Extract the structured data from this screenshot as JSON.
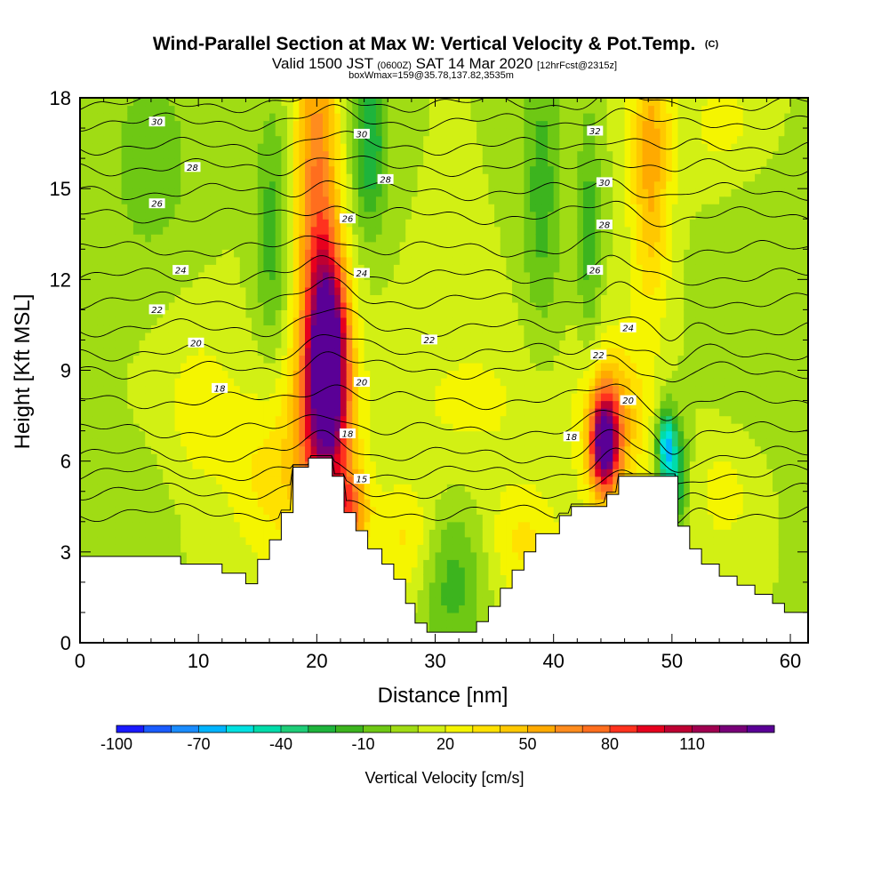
{
  "chart_data": {
    "type": "heatmap",
    "title": "Wind-Parallel Section at Max W: Vertical Velocity & Pot.Temp.",
    "title_suffix": "(C)",
    "subtitle_parts": [
      "Valid 1500 JST ",
      "(0600Z)",
      " SAT 14 Mar 2020 ",
      "[12hrFcst@2315z]"
    ],
    "subtitle_line2": "boxWmax=159@35.78,137.82,3535m",
    "xlabel": "Distance [nm]",
    "ylabel": "Height [Kft MSL]",
    "xlim": [
      0,
      61.5
    ],
    "ylim": [
      0,
      18
    ],
    "x_ticks": [
      0,
      10,
      20,
      30,
      40,
      50,
      60
    ],
    "y_ticks": [
      0,
      3,
      6,
      9,
      12,
      15,
      18
    ],
    "colorbar": {
      "title": "Vertical Velocity [cm/s]",
      "tick_labels": [
        "-100",
        "-70",
        "-40",
        "-10",
        "20",
        "50",
        "80",
        "110"
      ],
      "tick_values": [
        -100,
        -70,
        -40,
        -10,
        20,
        50,
        80,
        110
      ],
      "bins": [
        -100,
        -90,
        -80,
        -70,
        -60,
        -50,
        -40,
        -30,
        -20,
        -10,
        0,
        10,
        20,
        30,
        40,
        50,
        60,
        70,
        80,
        90,
        100,
        110,
        120,
        130
      ],
      "colors": [
        "#1a1aff",
        "#1a5cff",
        "#1a8cff",
        "#00b4ff",
        "#00e1e1",
        "#00dcaa",
        "#1ecd78",
        "#1eb43c",
        "#3cb41e",
        "#6ec814",
        "#a0dc14",
        "#d2f014",
        "#f5f500",
        "#ffe100",
        "#ffc800",
        "#ffaa00",
        "#ff8c1e",
        "#ff6e1e",
        "#ff321e",
        "#e6001e",
        "#be0032",
        "#a00050",
        "#780078",
        "#5a0096"
      ]
    },
    "background_w_cms": 10,
    "terrain_kft": [
      [
        0,
        2.85
      ],
      [
        8.5,
        2.85
      ],
      [
        8.5,
        2.6
      ],
      [
        12,
        2.6
      ],
      [
        12,
        2.3
      ],
      [
        14,
        2.3
      ],
      [
        14,
        1.95
      ],
      [
        15,
        1.95
      ],
      [
        15,
        2.75
      ],
      [
        16,
        2.75
      ],
      [
        16,
        3.4
      ],
      [
        17,
        3.4
      ],
      [
        17,
        4.3
      ],
      [
        18,
        4.3
      ],
      [
        18,
        5.8
      ],
      [
        19.3,
        5.8
      ],
      [
        19.3,
        6.1
      ],
      [
        21.3,
        6.1
      ],
      [
        21.3,
        5.5
      ],
      [
        22.3,
        5.5
      ],
      [
        22.3,
        4.3
      ],
      [
        23.3,
        4.3
      ],
      [
        23.3,
        3.7
      ],
      [
        24.3,
        3.7
      ],
      [
        24.3,
        3.1
      ],
      [
        25.5,
        3.1
      ],
      [
        25.5,
        2.6
      ],
      [
        26.5,
        2.6
      ],
      [
        26.5,
        2.1
      ],
      [
        27.5,
        2.1
      ],
      [
        27.5,
        1.3
      ],
      [
        28.3,
        1.3
      ],
      [
        28.3,
        0.65
      ],
      [
        29.3,
        0.65
      ],
      [
        29.3,
        0.35
      ],
      [
        33.5,
        0.35
      ],
      [
        33.5,
        0.7
      ],
      [
        34.5,
        0.7
      ],
      [
        34.5,
        1.2
      ],
      [
        35.5,
        1.2
      ],
      [
        35.5,
        1.8
      ],
      [
        36.5,
        1.8
      ],
      [
        36.5,
        2.4
      ],
      [
        37.5,
        2.4
      ],
      [
        37.5,
        3.0
      ],
      [
        38.5,
        3.0
      ],
      [
        38.5,
        3.6
      ],
      [
        40.5,
        3.6
      ],
      [
        40.5,
        4.2
      ],
      [
        41.5,
        4.2
      ],
      [
        41.5,
        4.5
      ],
      [
        44.5,
        4.5
      ],
      [
        44.5,
        4.9
      ],
      [
        45.5,
        4.9
      ],
      [
        45.5,
        5.5
      ],
      [
        50.5,
        5.5
      ],
      [
        50.5,
        3.85
      ],
      [
        51.5,
        3.85
      ],
      [
        51.5,
        3.1
      ],
      [
        52.5,
        3.1
      ],
      [
        52.5,
        2.6
      ],
      [
        54,
        2.6
      ],
      [
        54,
        2.2
      ],
      [
        55.5,
        2.2
      ],
      [
        55.5,
        1.9
      ],
      [
        57,
        1.9
      ],
      [
        57,
        1.6
      ],
      [
        58.5,
        1.6
      ],
      [
        58.5,
        1.3
      ],
      [
        59.5,
        1.3
      ],
      [
        59.5,
        1.0
      ],
      [
        61.5,
        1.0
      ]
    ],
    "w_features": [
      {
        "x": 21.0,
        "y": 9.5,
        "sx": 1.1,
        "sy": 2.3,
        "w": 125
      },
      {
        "x": 20.5,
        "y": 7.0,
        "sx": 1.9,
        "sy": 2.6,
        "w": 60
      },
      {
        "x": 20.0,
        "y": 15.0,
        "sx": 1.3,
        "sy": 4.5,
        "w": 60
      },
      {
        "x": 22.8,
        "y": 4.4,
        "sx": 1.1,
        "sy": 0.9,
        "w": 55
      },
      {
        "x": 16.0,
        "y": 5.5,
        "sx": 2.2,
        "sy": 2.2,
        "w": 22
      },
      {
        "x": 44.3,
        "y": 6.6,
        "sx": 0.8,
        "sy": 1.1,
        "w": 110
      },
      {
        "x": 45.0,
        "y": 7.2,
        "sx": 1.9,
        "sy": 1.9,
        "w": 45
      },
      {
        "x": 48.2,
        "y": 16.0,
        "sx": 1.2,
        "sy": 3.5,
        "w": 45
      },
      {
        "x": 27.5,
        "y": 3.3,
        "sx": 1.8,
        "sy": 1.4,
        "w": 22
      },
      {
        "x": 37.5,
        "y": 3.2,
        "sx": 2.3,
        "sy": 1.4,
        "w": 22
      },
      {
        "x": 24.5,
        "y": 16.5,
        "sx": 1.0,
        "sy": 2.0,
        "w": -40
      },
      {
        "x": 16.2,
        "y": 13.5,
        "sx": 1.0,
        "sy": 3.0,
        "w": -25
      },
      {
        "x": 39.0,
        "y": 15.0,
        "sx": 1.2,
        "sy": 3.5,
        "w": -25
      },
      {
        "x": 43.0,
        "y": 13.5,
        "sx": 0.7,
        "sy": 3.0,
        "w": -25
      },
      {
        "x": 31.5,
        "y": 2.0,
        "sx": 2.0,
        "sy": 1.8,
        "w": -25
      },
      {
        "x": 49.5,
        "y": 6.5,
        "sx": 0.55,
        "sy": 0.9,
        "w": -70
      },
      {
        "x": 50.5,
        "y": 5.5,
        "sx": 0.6,
        "sy": 1.2,
        "w": -40
      },
      {
        "x": 6.0,
        "y": 15.8,
        "sx": 3.0,
        "sy": 2.8,
        "w": -15
      },
      {
        "x": 3.0,
        "y": 4.5,
        "sx": 4.5,
        "sy": 1.5,
        "w": -10
      },
      {
        "x": 57.0,
        "y": 11.5,
        "sx": 3.0,
        "sy": 3.5,
        "w": -10
      },
      {
        "x": 10.0,
        "y": 7.5,
        "sx": 2.5,
        "sy": 2.5,
        "w": 15
      },
      {
        "x": 33.0,
        "y": 8.0,
        "sx": 5.0,
        "sy": 2.0,
        "w": 12
      },
      {
        "x": 54.5,
        "y": 5.0,
        "sx": 2.0,
        "sy": 1.5,
        "w": 15
      },
      {
        "x": 54.5,
        "y": 17.0,
        "sx": 2.5,
        "sy": 1.5,
        "w": 15
      }
    ],
    "isentropes_C": [
      {
        "theta": 14,
        "y0": 4.3
      },
      {
        "theta": 15,
        "y0": 5.0
      },
      {
        "theta": 16,
        "y0": 5.6
      },
      {
        "theta": 17,
        "y0": 6.2
      },
      {
        "theta": 18,
        "y0": 7.0
      },
      {
        "theta": 19,
        "y0": 8.0
      },
      {
        "theta": 20,
        "y0": 9.0
      },
      {
        "theta": 21,
        "y0": 9.6
      },
      {
        "theta": 22,
        "y0": 10.4
      },
      {
        "theta": 23,
        "y0": 11.3
      },
      {
        "theta": 24,
        "y0": 12.1
      },
      {
        "theta": 25,
        "y0": 13.0
      },
      {
        "theta": 26,
        "y0": 14.1
      },
      {
        "theta": 27,
        "y0": 14.9
      },
      {
        "theta": 28,
        "y0": 15.7
      },
      {
        "theta": 29,
        "y0": 16.4
      },
      {
        "theta": 30,
        "y0": 17.2
      },
      {
        "theta": 31,
        "y0": 17.8
      }
    ],
    "isentrope_labels": [
      {
        "text": "30",
        "x": 6.5,
        "y": 17.2
      },
      {
        "text": "28",
        "x": 9.5,
        "y": 15.7
      },
      {
        "text": "26",
        "x": 6.5,
        "y": 14.5
      },
      {
        "text": "24",
        "x": 8.5,
        "y": 12.3
      },
      {
        "text": "22",
        "x": 6.5,
        "y": 11.0
      },
      {
        "text": "20",
        "x": 9.8,
        "y": 9.9
      },
      {
        "text": "18",
        "x": 11.8,
        "y": 8.4
      },
      {
        "text": "30",
        "x": 23.8,
        "y": 16.8
      },
      {
        "text": "28",
        "x": 25.8,
        "y": 15.3
      },
      {
        "text": "26",
        "x": 22.6,
        "y": 14.0
      },
      {
        "text": "24",
        "x": 23.8,
        "y": 12.2
      },
      {
        "text": "22",
        "x": 29.5,
        "y": 10.0
      },
      {
        "text": "20",
        "x": 23.8,
        "y": 8.6
      },
      {
        "text": "18",
        "x": 22.6,
        "y": 6.9
      },
      {
        "text": "15",
        "x": 23.8,
        "y": 5.4
      },
      {
        "text": "32",
        "x": 43.5,
        "y": 16.9
      },
      {
        "text": "30",
        "x": 44.3,
        "y": 15.2
      },
      {
        "text": "28",
        "x": 44.3,
        "y": 13.8
      },
      {
        "text": "26",
        "x": 43.5,
        "y": 12.3
      },
      {
        "text": "24",
        "x": 46.3,
        "y": 10.4
      },
      {
        "text": "22",
        "x": 43.8,
        "y": 9.5
      },
      {
        "text": "20",
        "x": 46.3,
        "y": 8.0
      },
      {
        "text": "18",
        "x": 41.5,
        "y": 6.8
      }
    ]
  }
}
